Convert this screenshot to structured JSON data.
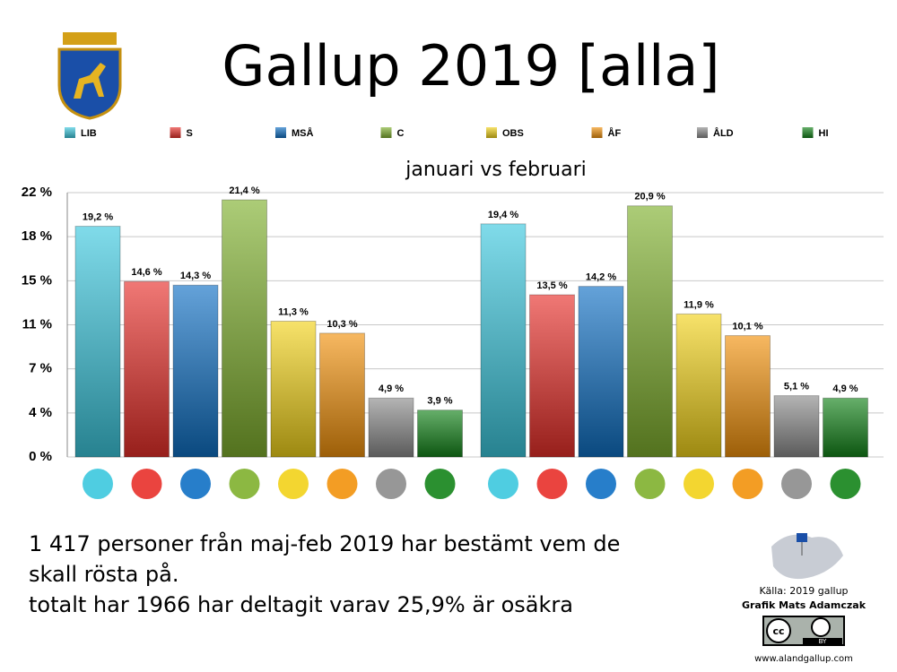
{
  "chart_data": {
    "type": "bar",
    "title": "Gallup 2019 [alla]",
    "subtitle": "januari vs februari",
    "categories": [
      null,
      null
    ],
    "series": [
      {
        "name": "LIB",
        "color": "#3cc8de",
        "values": [
          19.2,
          19.4
        ],
        "value_labels": [
          "19,2 %",
          "19,4 %"
        ]
      },
      {
        "name": "S",
        "color": "#e8302a",
        "values": [
          14.6,
          13.5
        ],
        "value_labels": [
          "14,6 %",
          "13,5 %"
        ]
      },
      {
        "name": "MSÅ",
        "color": "#1070c4",
        "values": [
          14.3,
          14.2
        ],
        "value_labels": [
          "14,3 %",
          "14,2 %"
        ]
      },
      {
        "name": "C",
        "color": "#7fb02e",
        "values": [
          21.4,
          20.9
        ],
        "value_labels": [
          "21,4 %",
          "20,9 %"
        ]
      },
      {
        "name": "OBS",
        "color": "#f2d21a",
        "values": [
          11.3,
          11.9
        ],
        "value_labels": [
          "11,3 %",
          "11,9 %"
        ]
      },
      {
        "name": "ÅF",
        "color": "#f2920c",
        "values": [
          10.3,
          10.1
        ],
        "value_labels": [
          "10,3 %",
          "10,1 %"
        ]
      },
      {
        "name": "ÅLD",
        "color": "#8c8c8c",
        "values": [
          4.9,
          5.1
        ],
        "value_labels": [
          "4,9 %",
          "5,1 %"
        ]
      },
      {
        "name": "HI",
        "color": "#14841a",
        "values": [
          3.9,
          4.9
        ],
        "value_labels": [
          "3,9 %",
          "4,9 %"
        ]
      }
    ],
    "ylim": [
      0,
      22
    ],
    "yticks": [
      {
        "value": 0,
        "label": "0 %"
      },
      {
        "value": 3.6667,
        "label": "4 %"
      },
      {
        "value": 7.3333,
        "label": "7 %"
      },
      {
        "value": 11,
        "label": "11 %"
      },
      {
        "value": 14.6667,
        "label": "15 %"
      },
      {
        "value": 18.3333,
        "label": "18 %"
      },
      {
        "value": 22,
        "label": "22 %"
      }
    ],
    "grid": true,
    "footnote": [
      "1 417 personer från maj-feb 2019 har bestämt vem de",
      "skall rösta på.",
      "totalt har 1966 har deltagit varav 25,9% är osäkra"
    ],
    "source": "Källa: 2019 gallup",
    "credit": "Grafik Mats Adamczak",
    "license": "BY",
    "license_mark": "cc",
    "website": "www.alandgallup.com"
  }
}
